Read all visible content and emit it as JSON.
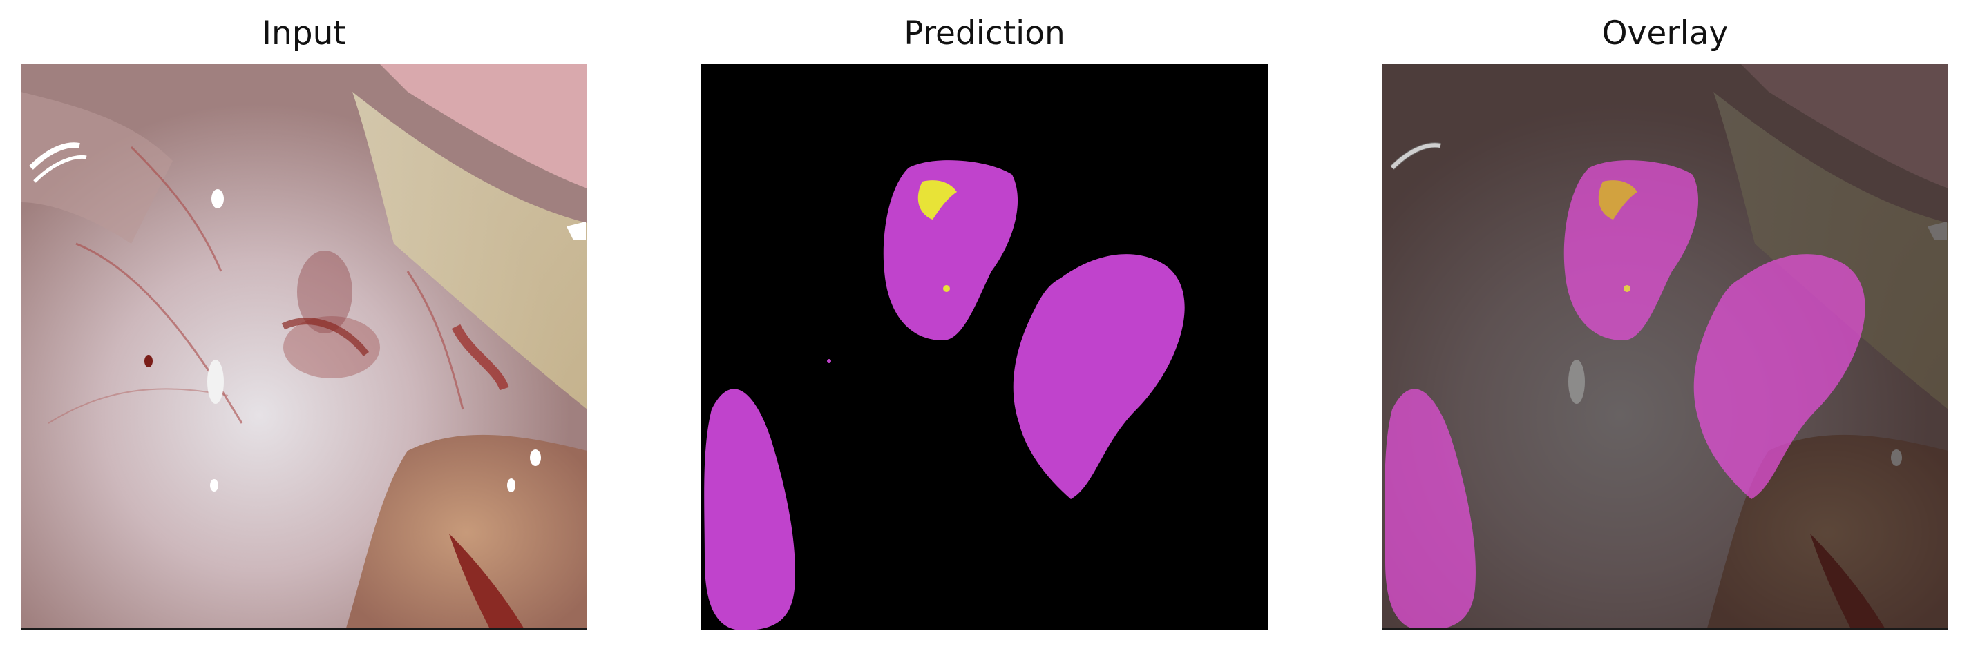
{
  "panels": [
    {
      "title": "Input"
    },
    {
      "title": "Prediction"
    },
    {
      "title": "Overlay"
    }
  ],
  "colors": {
    "class_a": "#c043cc",
    "class_b": "#e8e337",
    "background": "#000000"
  }
}
